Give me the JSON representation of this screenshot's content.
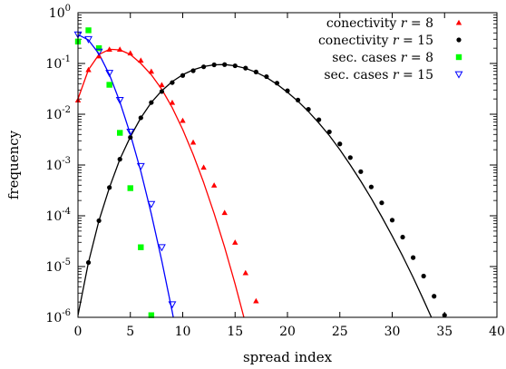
{
  "chart_data": {
    "type": "scatter",
    "xlabel": "spread index",
    "ylabel": "frequency",
    "xlim": [
      0,
      40
    ],
    "ylim": [
      1e-06,
      1
    ],
    "yscale": "log",
    "x_ticks": [
      "0",
      "5",
      "10",
      "15",
      "20",
      "25",
      "30",
      "35",
      "40"
    ],
    "y_ticks": [
      {
        "base": "10",
        "exp": "0"
      },
      {
        "base": "10",
        "exp": "-1"
      },
      {
        "base": "10",
        "exp": "-2"
      },
      {
        "base": "10",
        "exp": "-3"
      },
      {
        "base": "10",
        "exp": "-4"
      },
      {
        "base": "10",
        "exp": "-5"
      },
      {
        "base": "10",
        "exp": "-6"
      }
    ],
    "legend_position": "top-right",
    "series": [
      {
        "name": "conectivity r = 8",
        "label_text": "conectivity ",
        "label_var": "r",
        "label_val": " = 8",
        "marker": "triangle-filled",
        "color": "#ff0000",
        "points": [
          [
            0,
            0.019
          ],
          [
            1,
            0.075
          ],
          [
            2,
            0.14
          ],
          [
            3,
            0.19
          ],
          [
            4,
            0.19
          ],
          [
            5,
            0.16
          ],
          [
            6,
            0.115
          ],
          [
            7,
            0.07
          ],
          [
            8,
            0.038
          ],
          [
            9,
            0.017
          ],
          [
            10,
            0.0075
          ],
          [
            11,
            0.0028
          ],
          [
            12,
            0.0009
          ],
          [
            13,
            0.0004
          ],
          [
            14,
            0.000115
          ],
          [
            15,
            3e-05
          ],
          [
            16,
            7.5e-06
          ],
          [
            17,
            2.1e-06
          ]
        ],
        "fit": [
          [
            0,
            0.02
          ],
          [
            1,
            0.075
          ],
          [
            2,
            0.15
          ],
          [
            3,
            0.19
          ],
          [
            4,
            0.185
          ],
          [
            5,
            0.15
          ],
          [
            6,
            0.1
          ],
          [
            7,
            0.06
          ],
          [
            8,
            0.031
          ],
          [
            9,
            0.0135
          ],
          [
            10,
            0.005
          ],
          [
            11,
            0.0016
          ],
          [
            12,
            0.00045
          ],
          [
            13,
            0.00011
          ],
          [
            14,
            2.4e-05
          ],
          [
            15,
            4.5e-06
          ],
          [
            16,
            7.5e-07
          ],
          [
            17,
            1.1e-07
          ]
        ]
      },
      {
        "name": "conectivity r = 15",
        "label_text": "conectivity ",
        "label_var": "r",
        "label_val": " = 15",
        "marker": "circle-filled",
        "color": "#000000",
        "points": [
          [
            1,
            1.2e-05
          ],
          [
            2,
            8e-05
          ],
          [
            3,
            0.00036
          ],
          [
            4,
            0.0013
          ],
          [
            5,
            0.0035
          ],
          [
            6,
            0.0085
          ],
          [
            7,
            0.017
          ],
          [
            8,
            0.028
          ],
          [
            9,
            0.042
          ],
          [
            10,
            0.058
          ],
          [
            11,
            0.072
          ],
          [
            12,
            0.086
          ],
          [
            13,
            0.094
          ],
          [
            14,
            0.095
          ],
          [
            15,
            0.09
          ],
          [
            16,
            0.081
          ],
          [
            17,
            0.068
          ],
          [
            18,
            0.055
          ],
          [
            19,
            0.041
          ],
          [
            20,
            0.029
          ],
          [
            21,
            0.019
          ],
          [
            22,
            0.0125
          ],
          [
            23,
            0.0078
          ],
          [
            24,
            0.0045
          ],
          [
            25,
            0.0026
          ],
          [
            26,
            0.0014
          ],
          [
            27,
            0.00074
          ],
          [
            28,
            0.00037
          ],
          [
            29,
            0.00018
          ],
          [
            30,
            8.2e-05
          ],
          [
            31,
            3.8e-05
          ],
          [
            32,
            1.5e-05
          ],
          [
            33,
            6.5e-06
          ],
          [
            34,
            2.6e-06
          ],
          [
            35,
            1.1e-06
          ]
        ],
        "fit": [
          [
            0,
            1.1e-06
          ],
          [
            1,
            1.2e-05
          ],
          [
            2,
            8e-05
          ],
          [
            3,
            0.00036
          ],
          [
            4,
            0.0013
          ],
          [
            5,
            0.0036
          ],
          [
            6,
            0.0085
          ],
          [
            7,
            0.017
          ],
          [
            8,
            0.029
          ],
          [
            9,
            0.044
          ],
          [
            10,
            0.06
          ],
          [
            11,
            0.075
          ],
          [
            12,
            0.087
          ],
          [
            13,
            0.094
          ],
          [
            14,
            0.095
          ],
          [
            15,
            0.09
          ],
          [
            16,
            0.08
          ],
          [
            17,
            0.067
          ],
          [
            18,
            0.053
          ],
          [
            19,
            0.039
          ],
          [
            20,
            0.027
          ],
          [
            21,
            0.018
          ],
          [
            22,
            0.0113
          ],
          [
            23,
            0.0067
          ],
          [
            24,
            0.0038
          ],
          [
            25,
            0.002
          ],
          [
            26,
            0.001
          ],
          [
            27,
            0.00048
          ],
          [
            28,
            0.00022
          ],
          [
            29,
            9.6e-05
          ],
          [
            30,
            4e-05
          ],
          [
            31,
            1.6e-05
          ],
          [
            32,
            6.1e-06
          ],
          [
            33,
            2.2e-06
          ],
          [
            34,
            7.6e-07
          ],
          [
            35,
            2.5e-07
          ]
        ]
      },
      {
        "name": "sec. cases r = 8",
        "label_text": "sec. cases ",
        "label_var": "r",
        "label_val": " = 8",
        "marker": "square-filled",
        "color": "#00ff00",
        "points": [
          [
            0,
            0.27
          ],
          [
            1,
            0.45
          ],
          [
            2,
            0.2
          ],
          [
            3,
            0.038
          ],
          [
            4,
            0.0043
          ],
          [
            5,
            0.00035
          ],
          [
            6,
            2.4e-05
          ],
          [
            7,
            1.1e-06
          ]
        ]
      },
      {
        "name": "sec. cases r = 15",
        "label_text": "sec. cases ",
        "label_var": "r",
        "label_val": " = 15",
        "marker": "triangle-down-open",
        "color": "#0000ff",
        "points": [
          [
            0,
            0.37
          ],
          [
            1,
            0.3
          ],
          [
            2,
            0.17
          ],
          [
            3,
            0.065
          ],
          [
            4,
            0.019
          ],
          [
            5,
            0.0045
          ],
          [
            6,
            0.00095
          ],
          [
            7,
            0.00017
          ],
          [
            8,
            2.4e-05
          ],
          [
            9,
            1.8e-06
          ]
        ],
        "fit": [
          [
            0,
            0.37
          ],
          [
            1,
            0.29
          ],
          [
            2,
            0.155
          ],
          [
            3,
            0.06
          ],
          [
            4,
            0.0175
          ],
          [
            5,
            0.004
          ],
          [
            6,
            0.00075
          ],
          [
            7,
            0.00011
          ],
          [
            8,
            1.3e-05
          ],
          [
            9,
            1.3e-06
          ],
          [
            9.1,
            1e-06
          ]
        ]
      }
    ]
  }
}
